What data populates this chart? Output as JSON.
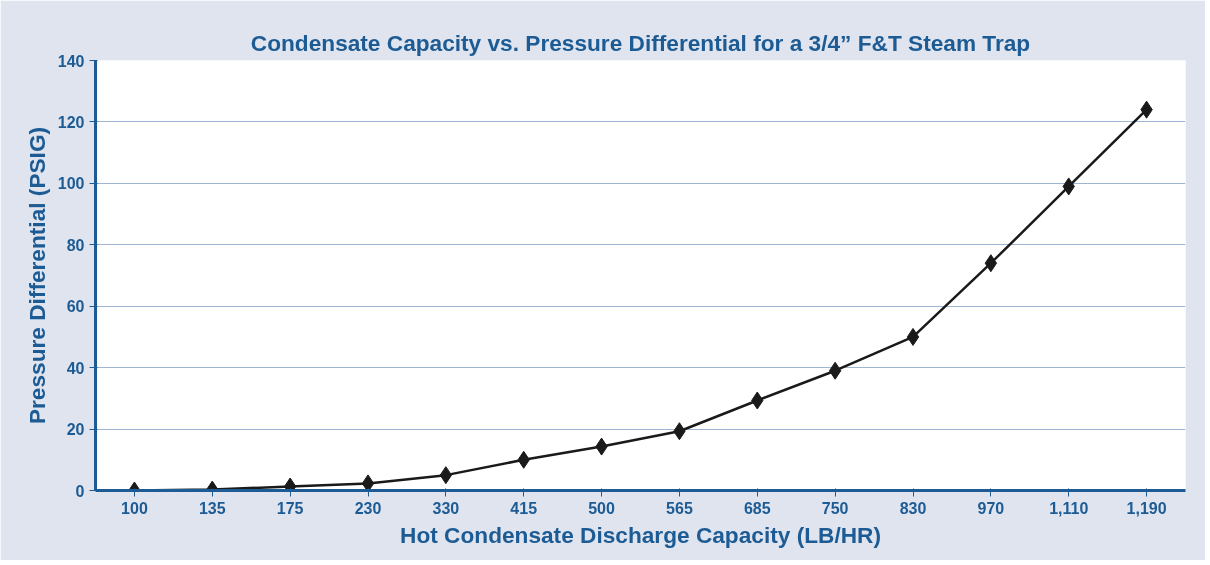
{
  "chart_data": {
    "type": "line",
    "title": "Condensate Capacity vs. Pressure Differential for a 3/4” F&T Steam Trap",
    "xlabel": "Hot Condensate Discharge Capacity (LB/HR)",
    "ylabel": "Pressure Differential (PSIG)",
    "categories": [
      "100",
      "135",
      "175",
      "230",
      "330",
      "415",
      "500",
      "565",
      "685",
      "750",
      "830",
      "970",
      "1,110",
      "1,190"
    ],
    "series": [
      {
        "color": "#1a1a1a",
        "values": [
          0,
          0.3,
          1.3,
          2.3,
          5,
          10,
          14.3,
          19.3,
          29.3,
          39,
          50,
          74,
          99,
          124
        ]
      }
    ],
    "ylim": [
      0,
      140
    ],
    "yticks": [
      0,
      20,
      40,
      60,
      80,
      100,
      120,
      140
    ],
    "grid": "y",
    "marker": "diamond",
    "line_style": "solid"
  }
}
